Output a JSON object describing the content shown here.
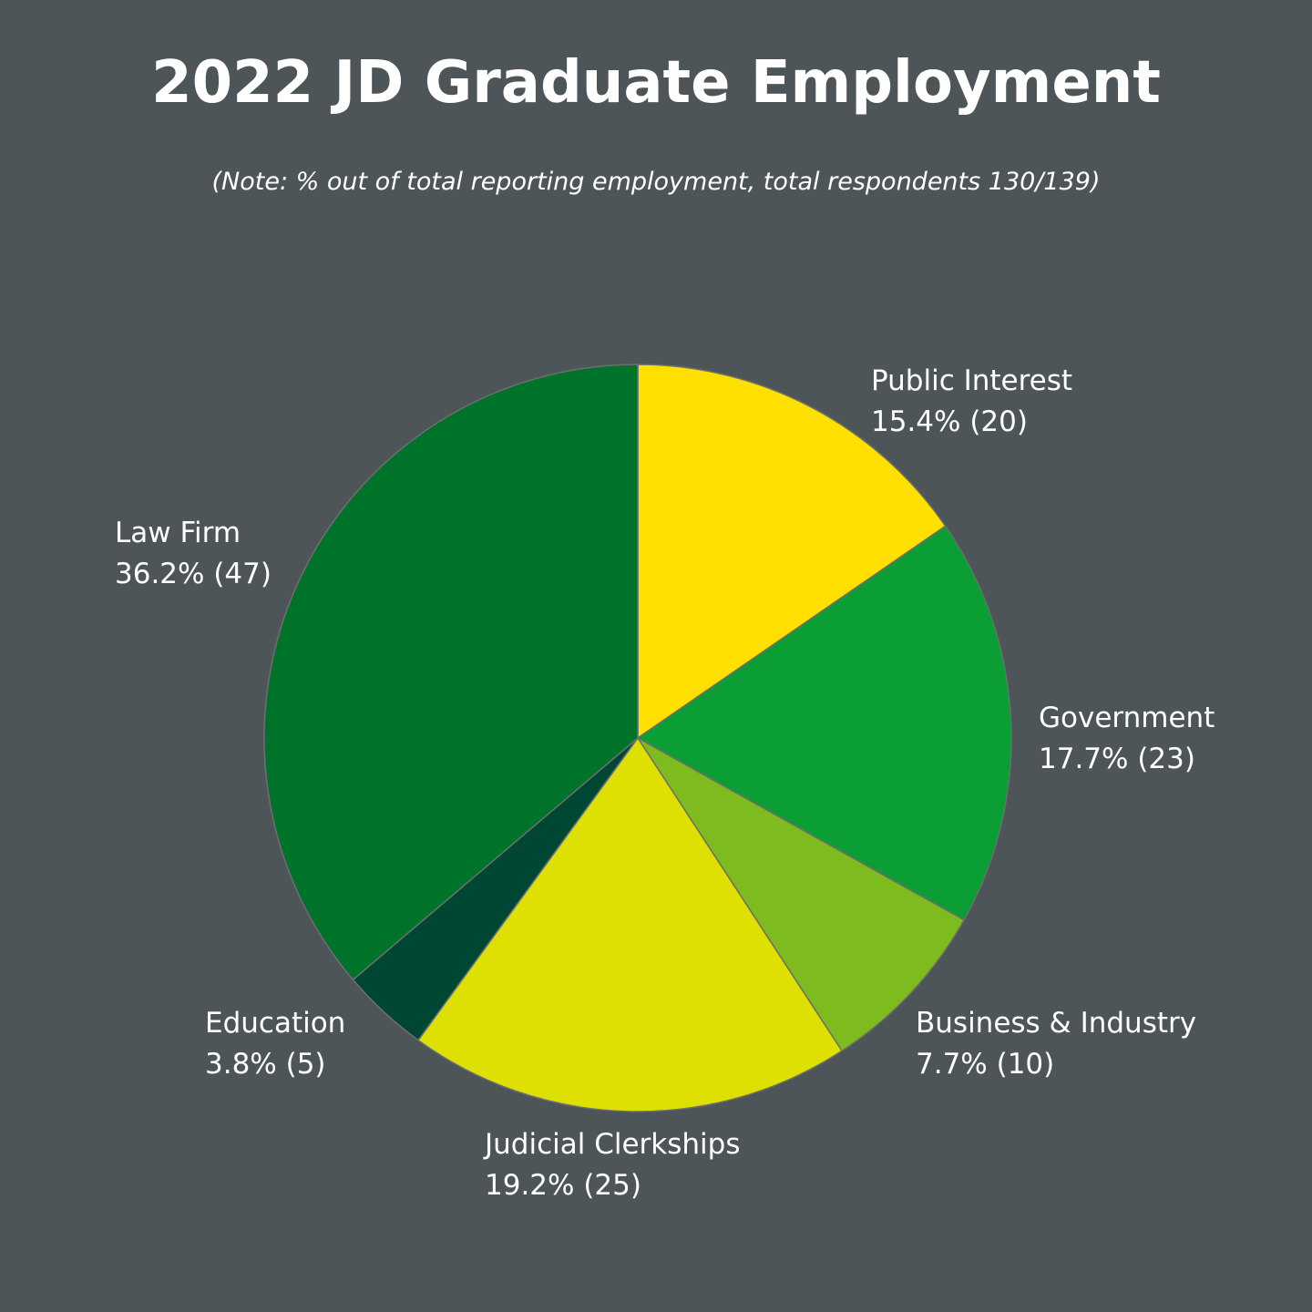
{
  "chart_data": {
    "type": "pie",
    "title": "2022 JD Graduate Employment",
    "subtitle": "(Note: % out of total reporting employment, total respondents 130/139)",
    "categories": [
      "Public Interest",
      "Government",
      "Business & Industry",
      "Judicial Clerkships",
      "Education",
      "Law Firm"
    ],
    "values": [
      15.4,
      17.7,
      7.7,
      19.2,
      3.8,
      36.2
    ],
    "value_labels": [
      "15.4% (20)",
      "17.7% (23)",
      "7.7% (10)",
      "19.2% (25)",
      "3.8% (5)",
      "36.2% (47)"
    ],
    "colors": [
      "#ffe000",
      "#0a9e35",
      "#7dbb1e",
      "#dde000",
      "#004733",
      "#00732a"
    ]
  }
}
